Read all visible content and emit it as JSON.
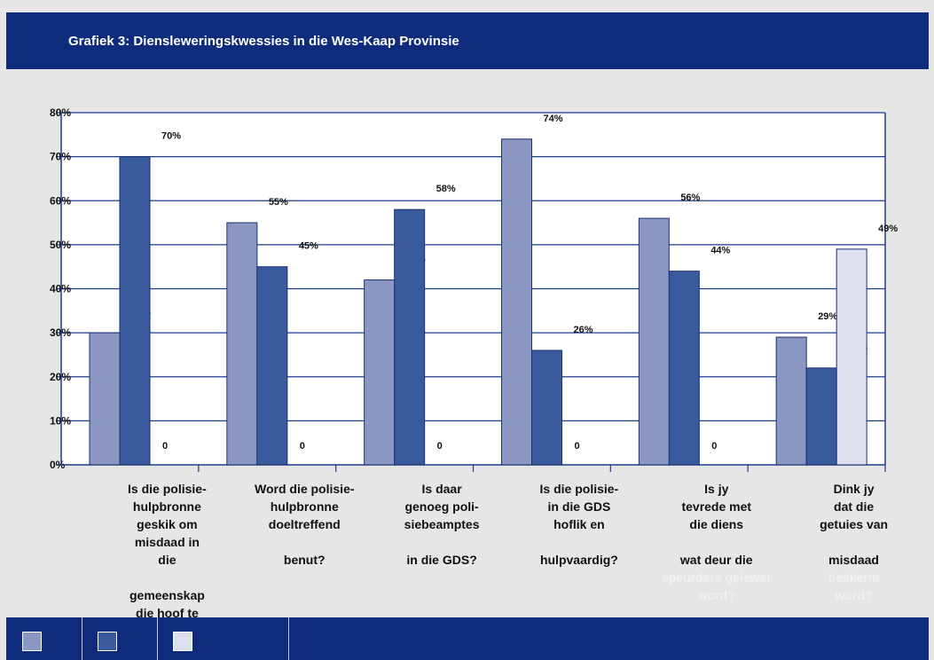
{
  "title": "Grafiek 3: Diensleweringskwessies in die Wes-Kaap Provinsie",
  "colors": {
    "header_bg": "#0e2b7c",
    "plot_bg": "#ffffff",
    "grid": "#1c3d8c",
    "series": [
      "#8a97c3",
      "#3a5a9e",
      "#dcdfee"
    ]
  },
  "chart_data": {
    "type": "bar",
    "title": "Grafiek 3: Diensleweringskwessies in die Wes-Kaap Provinsie",
    "ylim": [
      0,
      80
    ],
    "yticks": [
      "0%",
      "10%",
      "20%",
      "30%",
      "40%",
      "50%",
      "60%",
      "70%",
      "80%"
    ],
    "grid": true,
    "categories": [
      "Is die polisie-hulpbronne geskik om misdaad in die gemeenskap die hoof te bied?",
      "Word die polisie-hulpbronne doeltreffend benut?",
      "Is daar genoeg polisiebeamptes in die GDS?",
      "Is die polisie in die GDS hoflik en hulpvaardig?",
      "Is jy tevrede met die diens wat deur die speurders gelewer word?",
      "Dink jy dat die getuies van misdaad beskerm word?"
    ],
    "series": [
      {
        "values": [
          30,
          55,
          42,
          74,
          56,
          29
        ]
      },
      {
        "values": [
          70,
          45,
          58,
          26,
          44,
          22
        ]
      },
      {
        "values": [
          0,
          0,
          0,
          0,
          0,
          49
        ]
      }
    ],
    "labels": [
      [
        "30%",
        "55%",
        "42%",
        "74%",
        "56%",
        "29%"
      ],
      [
        "70%",
        "45%",
        "58%",
        "26%",
        "44%",
        "22%"
      ],
      [
        "0",
        "0",
        "0",
        "0",
        "0",
        "49%"
      ]
    ],
    "legend": "bottom"
  },
  "category_text": [
    {
      "main": "Is die polisie-\nhulpbronne\ngeskik om\nmisdaad in\ndie\n\ngemeenskap\ndie hoof te\nbied?",
      "tail": ""
    },
    {
      "main": "Word die polisie-\nhulpbronne\ndoeltreffend\n\nbenut?",
      "tail": ""
    },
    {
      "main": "Is daar\ngenoeg poli-\nsiebeamptes\n\nin die GDS?",
      "tail": ""
    },
    {
      "main": "Is die polisie-\nin die GDS\nhoflik en\n\nhulpvaardig?",
      "tail": ""
    },
    {
      "main": "Is jy\ntevrede met\ndie diens\n\nwat deur die",
      "tail": "speurders gelewer\nword?"
    },
    {
      "main": "Dink jy\ndat die\ngetuies van\n\nmisdaad",
      "tail": "beskerm\nword?"
    }
  ]
}
